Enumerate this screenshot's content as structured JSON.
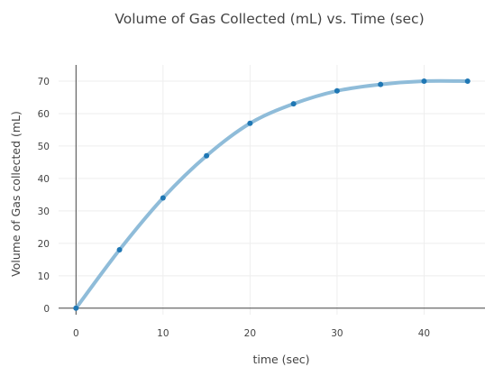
{
  "chart_data": {
    "type": "scatter",
    "title": "Volume of Gas Collected (mL) vs. Time (sec)",
    "xlabel": "time (sec)",
    "ylabel": "Volume of Gas collected (mL)",
    "xlim": [
      -2,
      47
    ],
    "ylim": [
      -2,
      75
    ],
    "x_ticks": [
      0,
      10,
      20,
      30,
      40
    ],
    "y_ticks": [
      0,
      10,
      20,
      30,
      40,
      50,
      60,
      70
    ],
    "grid": true,
    "legend": "none",
    "series": [
      {
        "x": [
          0,
          5,
          10,
          15,
          20,
          25,
          30,
          35,
          40,
          45
        ],
        "y": [
          0,
          18,
          34,
          47,
          57,
          63,
          67,
          69,
          70,
          70
        ],
        "marker_color": "#1f77b4",
        "line_color": "#8fbcd9",
        "line_shape": "smooth"
      }
    ]
  }
}
